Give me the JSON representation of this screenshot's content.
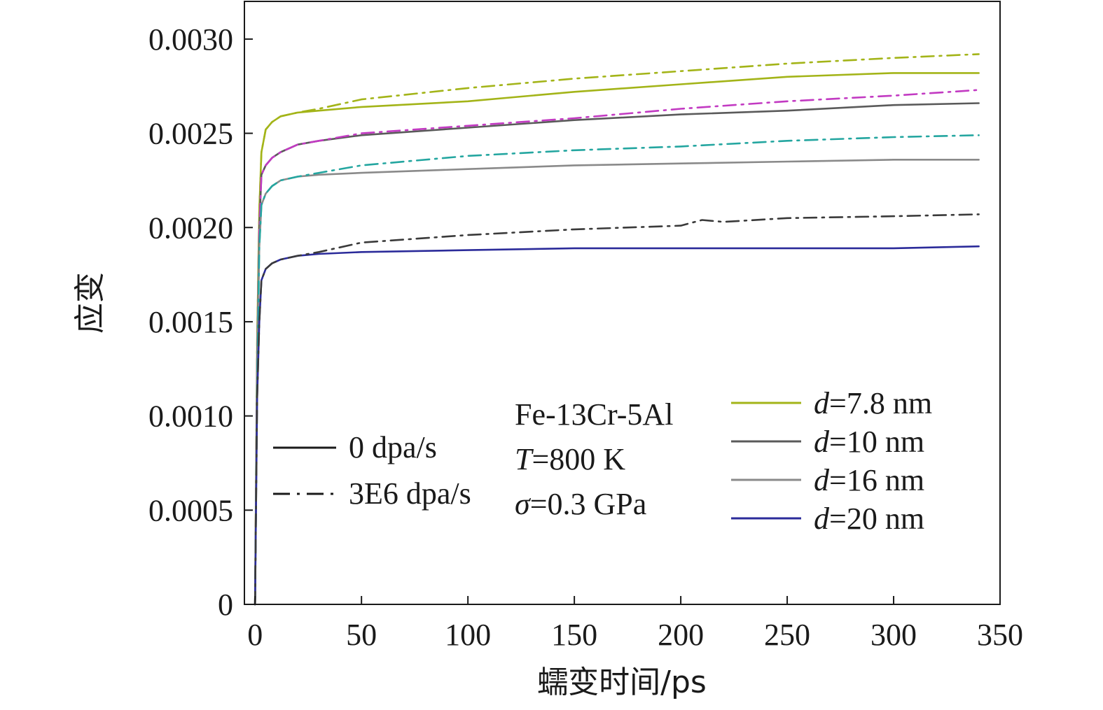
{
  "chart_data": {
    "type": "line",
    "title": "",
    "xlabel": "蠕变时间/ps",
    "ylabel": "应变",
    "xlim": [
      -5,
      350
    ],
    "ylim": [
      0,
      0.0032
    ],
    "xticks": [
      0,
      50,
      100,
      150,
      200,
      250,
      300,
      350
    ],
    "xtick_labels": [
      "0",
      "50",
      "100",
      "150",
      "200",
      "250",
      "300",
      "350"
    ],
    "yticks": [
      0,
      0.0005,
      0.001,
      0.0015,
      0.002,
      0.0025,
      0.003
    ],
    "ytick_labels": [
      "0",
      "0.0005",
      "0.0010",
      "0.0015",
      "0.0020",
      "0.0025",
      "0.0030"
    ],
    "grid": false,
    "legend_styles": [
      {
        "label": "0 dpa/s",
        "dash": "solid"
      },
      {
        "label": "3E6 dpa/s",
        "dash": "dashdot"
      }
    ],
    "legend_sizes": [
      {
        "label": "d=7.8 nm",
        "label_italic": "d",
        "label_rest": "=7.8 nm",
        "color": "#a3b418"
      },
      {
        "label": "d=10 nm",
        "label_italic": "d",
        "label_rest": "=10 nm",
        "color": "#5a5a5a"
      },
      {
        "label": "d=16 nm",
        "label_italic": "d",
        "label_rest": "=16 nm",
        "color": "#8a8a8a"
      },
      {
        "label": "d=20 nm",
        "label_italic": "d",
        "label_rest": "=20 nm",
        "color": "#2b2b9a"
      }
    ],
    "annotation": {
      "material": "Fe-13Cr-5Al",
      "temperature_italic": "T",
      "temperature_rest": "=800 K",
      "stress_italic": "σ",
      "stress_rest": "=0.3 GPa"
    },
    "series": [
      {
        "name": "d=7.8 nm",
        "dpa": "0 dpa/s",
        "color": "#a3b418",
        "dash": "solid",
        "x": [
          0,
          1,
          2,
          3,
          5,
          8,
          12,
          20,
          30,
          50,
          100,
          150,
          200,
          250,
          300,
          340
        ],
        "y": [
          0,
          0.0014,
          0.0021,
          0.0024,
          0.00252,
          0.00256,
          0.00259,
          0.00261,
          0.00262,
          0.00264,
          0.00267,
          0.00272,
          0.00276,
          0.0028,
          0.00282,
          0.00282
        ]
      },
      {
        "name": "d=7.8 nm",
        "dpa": "3E6 dpa/s",
        "color": "#a3b418",
        "dash": "dashdot",
        "x": [
          0,
          1,
          2,
          3,
          5,
          8,
          12,
          20,
          30,
          50,
          100,
          150,
          200,
          250,
          300,
          340
        ],
        "y": [
          0,
          0.0014,
          0.0021,
          0.0024,
          0.00252,
          0.00256,
          0.00259,
          0.00261,
          0.00263,
          0.00268,
          0.00274,
          0.00279,
          0.00283,
          0.00287,
          0.0029,
          0.00292
        ]
      },
      {
        "name": "d=10 nm",
        "dpa": "0 dpa/s",
        "color": "#5a5a5a",
        "dash": "solid",
        "x": [
          0,
          1,
          2,
          3,
          5,
          8,
          12,
          20,
          30,
          50,
          100,
          150,
          200,
          250,
          300,
          340
        ],
        "y": [
          0,
          0.0013,
          0.002,
          0.00228,
          0.00233,
          0.00237,
          0.0024,
          0.00244,
          0.00246,
          0.00249,
          0.00253,
          0.00257,
          0.0026,
          0.00262,
          0.00265,
          0.00266
        ]
      },
      {
        "name": "d=10 nm",
        "dpa": "3E6 dpa/s",
        "color": "#c23ac2",
        "dash": "dashdot",
        "x": [
          0,
          1,
          2,
          3,
          5,
          8,
          12,
          20,
          30,
          50,
          100,
          150,
          200,
          250,
          300,
          340
        ],
        "y": [
          0,
          0.0013,
          0.002,
          0.00228,
          0.00233,
          0.00237,
          0.0024,
          0.00244,
          0.00246,
          0.0025,
          0.00254,
          0.00258,
          0.00263,
          0.00267,
          0.0027,
          0.00273
        ]
      },
      {
        "name": "d=16 nm",
        "dpa": "0 dpa/s",
        "color": "#8a8a8a",
        "dash": "solid",
        "x": [
          0,
          1,
          2,
          3,
          5,
          8,
          12,
          20,
          30,
          50,
          100,
          150,
          200,
          250,
          300,
          340
        ],
        "y": [
          0,
          0.0012,
          0.0019,
          0.00212,
          0.00218,
          0.00222,
          0.00225,
          0.00227,
          0.00228,
          0.00229,
          0.00231,
          0.00233,
          0.00234,
          0.00235,
          0.00236,
          0.00236
        ]
      },
      {
        "name": "d=16 nm",
        "dpa": "3E6 dpa/s",
        "color": "#24a6a0",
        "dash": "dashdot",
        "x": [
          0,
          1,
          2,
          3,
          5,
          8,
          12,
          20,
          30,
          50,
          100,
          150,
          200,
          250,
          300,
          340
        ],
        "y": [
          0,
          0.0012,
          0.0019,
          0.00212,
          0.00218,
          0.00222,
          0.00225,
          0.00227,
          0.00229,
          0.00233,
          0.00238,
          0.00241,
          0.00243,
          0.00246,
          0.00248,
          0.00249
        ]
      },
      {
        "name": "d=20 nm",
        "dpa": "0 dpa/s",
        "color": "#2b2b9a",
        "dash": "solid",
        "x": [
          0,
          1,
          2,
          3,
          5,
          8,
          12,
          20,
          30,
          50,
          100,
          150,
          200,
          250,
          300,
          340
        ],
        "y": [
          0,
          0.0011,
          0.0015,
          0.00172,
          0.00178,
          0.00181,
          0.00183,
          0.00185,
          0.00186,
          0.00187,
          0.00188,
          0.00189,
          0.00189,
          0.00189,
          0.00189,
          0.0019
        ]
      },
      {
        "name": "d=20 nm",
        "dpa": "3E6 dpa/s",
        "color": "#3a3a3a",
        "dash": "dashdot",
        "x": [
          0,
          1,
          2,
          3,
          5,
          8,
          12,
          20,
          30,
          50,
          100,
          150,
          200,
          210,
          220,
          250,
          300,
          340
        ],
        "y": [
          0,
          0.0011,
          0.0015,
          0.00172,
          0.00178,
          0.00181,
          0.00183,
          0.00185,
          0.00187,
          0.00192,
          0.00196,
          0.00199,
          0.00201,
          0.00204,
          0.00203,
          0.00205,
          0.00206,
          0.00207
        ]
      }
    ]
  }
}
